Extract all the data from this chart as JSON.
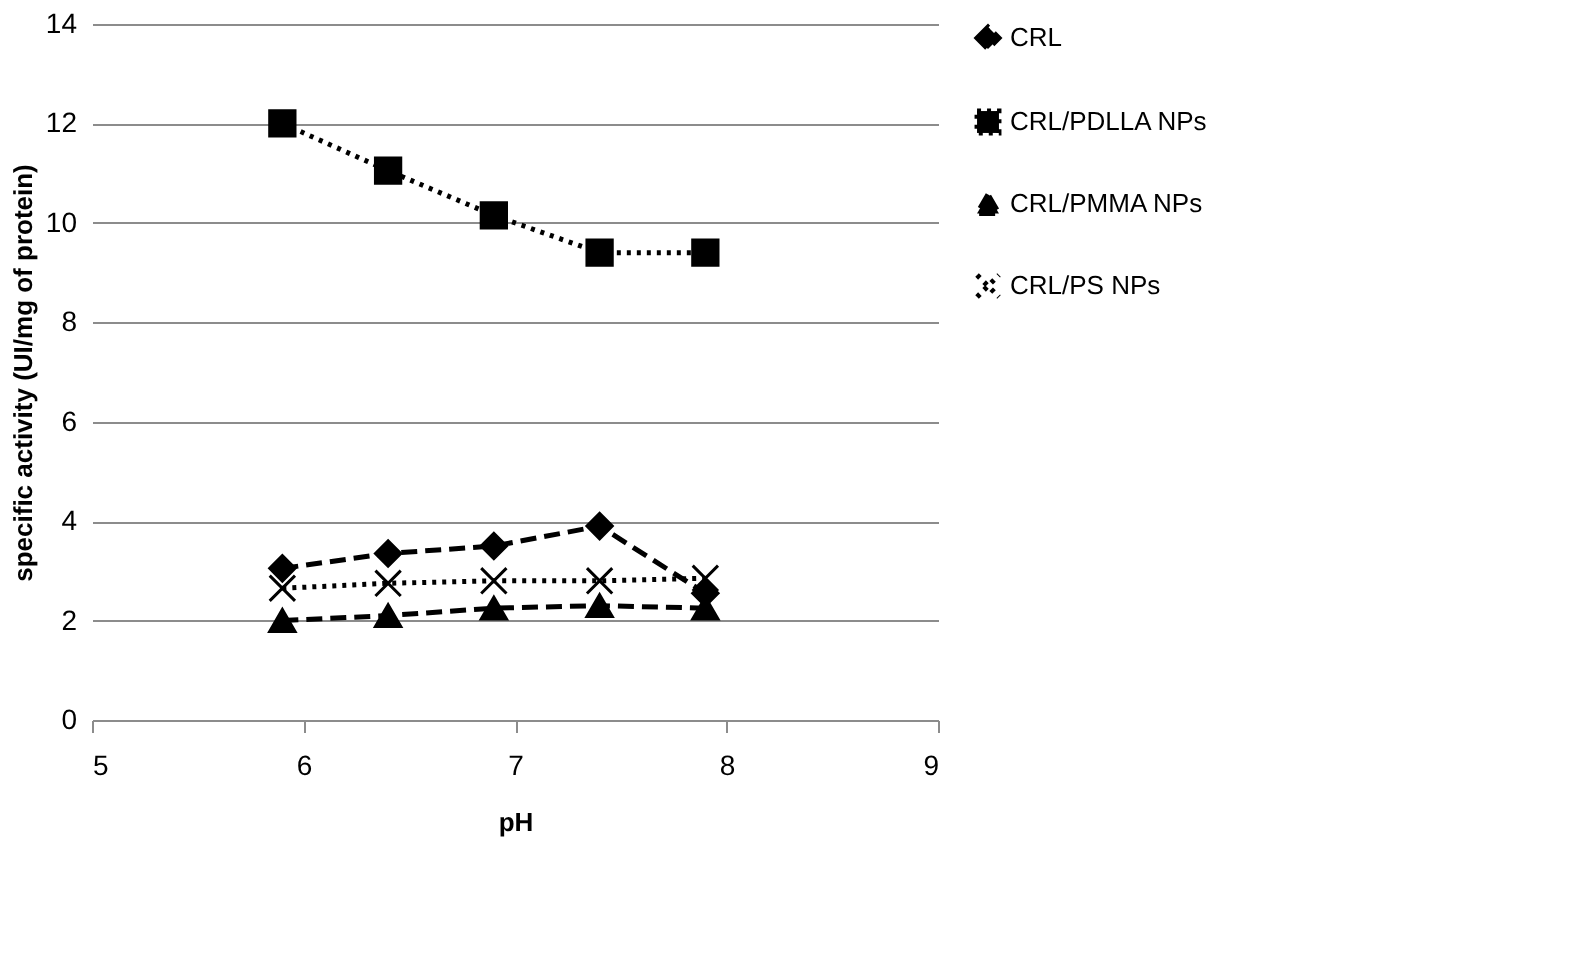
{
  "chart_data": {
    "type": "line",
    "xlabel": "pH",
    "ylabel": "specific activity (UI/mg of protein)",
    "xlim": [
      5,
      9
    ],
    "xticks": [
      5,
      6,
      7,
      8,
      9
    ],
    "ylim": [
      0,
      14
    ],
    "yticks": [
      0,
      2,
      4,
      6,
      8,
      10,
      12,
      14
    ],
    "grid": "y",
    "legend": "right",
    "series": [
      {
        "name": "CRL",
        "color": "#000000",
        "x": [
          5.9,
          6.4,
          6.9,
          7.4,
          7.9
        ],
        "values": [
          3.05,
          3.35,
          3.5,
          3.9,
          2.55
        ],
        "marker": "diamond",
        "line_style": "dashed"
      },
      {
        "name": "CRL/PDLLA NPs",
        "color": "#000000",
        "x": [
          5.9,
          6.4,
          6.9,
          7.4,
          7.9
        ],
        "values": [
          12.0,
          11.05,
          10.15,
          9.4,
          9.4
        ],
        "marker": "square",
        "line_style": "dotted"
      },
      {
        "name": "CRL/PMMA NPs",
        "color": "#000000",
        "x": [
          5.9,
          6.4,
          6.9,
          7.4,
          7.9
        ],
        "values": [
          2.0,
          2.1,
          2.25,
          2.3,
          2.25
        ],
        "marker": "triangle",
        "line_style": "dashed"
      },
      {
        "name": "CRL/PS NPs",
        "color": "#000000",
        "x": [
          5.9,
          6.4,
          6.9,
          7.4,
          7.9
        ],
        "values": [
          2.65,
          2.75,
          2.8,
          2.8,
          2.85
        ],
        "marker": "cross",
        "line_style": "dotted"
      }
    ]
  }
}
